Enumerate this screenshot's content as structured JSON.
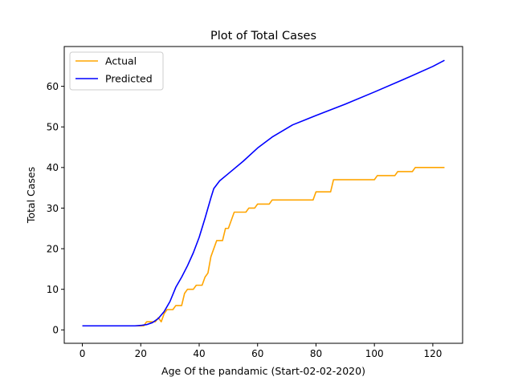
{
  "chart_data": {
    "type": "line",
    "title": "Plot of Total Cases",
    "xlabel": "Age Of the pandamic (Start-02-02-2020)",
    "ylabel": "Total Cases",
    "xlim": [
      -6.2,
      130.2
    ],
    "ylim": [
      -3.3,
      69.8
    ],
    "xticks": [
      0,
      20,
      40,
      60,
      80,
      100,
      120
    ],
    "yticks": [
      0,
      10,
      20,
      30,
      40,
      50,
      60
    ],
    "grid": false,
    "legend_position": "top-left",
    "series": [
      {
        "name": "Actual",
        "color": "#ffa500",
        "x": [
          0,
          21,
          22,
          25,
          26,
          27,
          28,
          29,
          31,
          32,
          34,
          35,
          36,
          38,
          39,
          41,
          42,
          43,
          44,
          46,
          47,
          48,
          49,
          50,
          51,
          52,
          56,
          57,
          59,
          60,
          63,
          64,
          65,
          79,
          80,
          85,
          86,
          100,
          101,
          107,
          108,
          113,
          114,
          124
        ],
        "y": [
          1,
          1,
          2,
          2,
          3,
          2,
          4,
          5,
          5,
          6,
          6,
          9,
          10,
          10,
          11,
          11,
          13,
          14,
          18,
          22,
          22,
          22,
          25,
          25,
          27,
          29,
          29,
          30,
          30,
          31,
          31,
          31,
          32,
          32,
          34,
          34,
          37,
          37,
          38,
          38,
          39,
          39,
          40,
          40
        ]
      },
      {
        "name": "Predicted",
        "color": "#0000ff",
        "x": [
          0,
          18,
          20,
          22,
          24,
          26,
          28,
          30,
          32,
          34,
          36,
          38,
          40,
          42,
          44,
          45,
          47,
          50,
          55,
          60,
          65,
          72,
          80,
          90,
          100,
          110,
          120,
          124
        ],
        "y": [
          1,
          1,
          1.1,
          1.3,
          1.8,
          2.8,
          4.5,
          7,
          10.5,
          13,
          15.8,
          19,
          22.8,
          27.5,
          32.5,
          34.8,
          36.7,
          38.5,
          41.5,
          44.8,
          47.5,
          50.5,
          52.8,
          55.6,
          58.6,
          61.7,
          64.9,
          66.4
        ]
      }
    ]
  }
}
